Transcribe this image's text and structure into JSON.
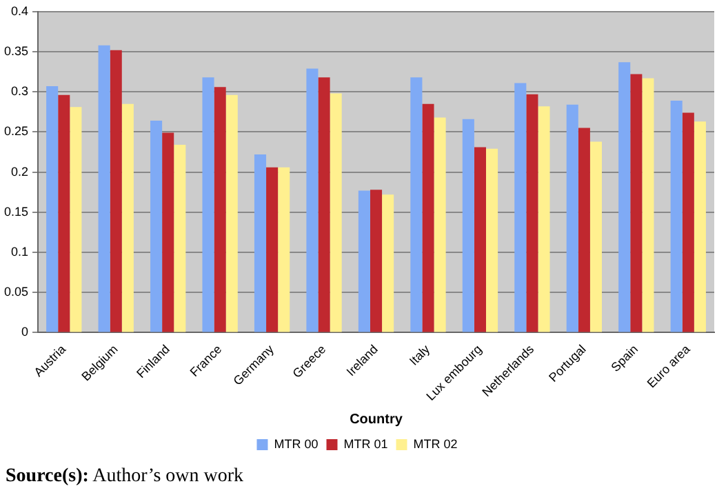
{
  "chart_data": {
    "type": "bar",
    "xlabel": "Country",
    "categories": [
      "Austria",
      "Belgium",
      "Finland",
      "France",
      "Germany",
      "Greece",
      "Ireland",
      "Italy",
      "Lux embourg",
      "Netherlands",
      "Portugal",
      "Spain",
      "Euro area"
    ],
    "series": [
      {
        "name": "MTR 00",
        "color": "#7faaf5",
        "values": [
          0.307,
          0.358,
          0.264,
          0.318,
          0.222,
          0.329,
          0.177,
          0.318,
          0.266,
          0.311,
          0.284,
          0.337,
          0.289
        ]
      },
      {
        "name": "MTR 01",
        "color": "#c0282f",
        "values": [
          0.296,
          0.352,
          0.249,
          0.306,
          0.206,
          0.318,
          0.178,
          0.285,
          0.231,
          0.297,
          0.255,
          0.322,
          0.274
        ]
      },
      {
        "name": "MTR 02",
        "color": "#fff08f",
        "values": [
          0.281,
          0.285,
          0.234,
          0.296,
          0.206,
          0.298,
          0.172,
          0.268,
          0.229,
          0.282,
          0.238,
          0.317,
          0.263
        ]
      }
    ],
    "ylim": [
      0,
      0.4
    ],
    "yticks": [
      0,
      0.05,
      0.1,
      0.15,
      0.2,
      0.25,
      0.3,
      0.35,
      0.4
    ],
    "grid": "y",
    "legend": "bottom",
    "annotations": [
      "Source(s): Author’s own work"
    ]
  }
}
